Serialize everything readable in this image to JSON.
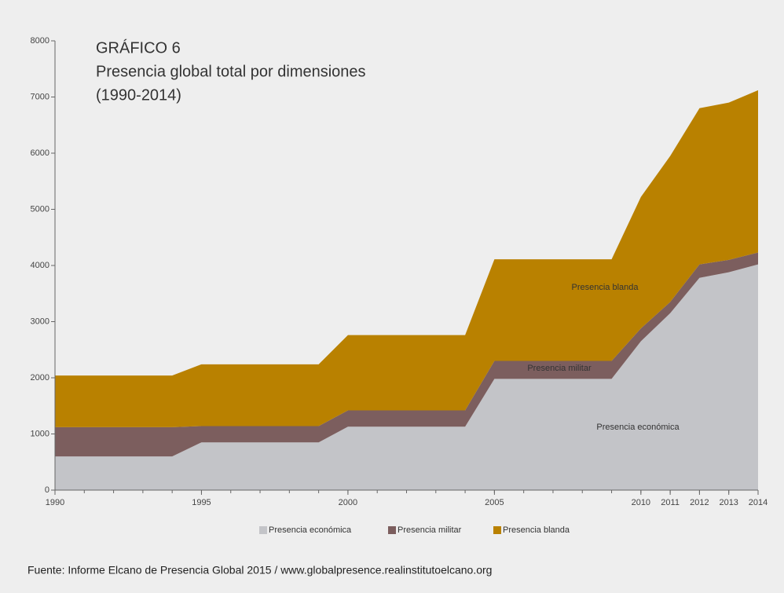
{
  "chart_data": {
    "type": "stacked_area",
    "title": [
      "GRÁFICO 6",
      "Presencia global total por dimensiones",
      "(1990-2014)"
    ],
    "x": [
      1990,
      1991,
      1992,
      1993,
      1994,
      1995,
      1996,
      1997,
      1998,
      1999,
      2000,
      2001,
      2002,
      2003,
      2004,
      2005,
      2006,
      2007,
      2008,
      2009,
      2010,
      2011,
      2012,
      2013,
      2014
    ],
    "series": [
      {
        "name": "Presencia económica",
        "color": "#c3c4c8",
        "values": [
          600,
          600,
          600,
          600,
          600,
          850,
          850,
          850,
          850,
          850,
          1130,
          1130,
          1130,
          1130,
          1130,
          1980,
          1980,
          1980,
          1980,
          1980,
          2650,
          3150,
          3780,
          3880,
          4020
        ]
      },
      {
        "name": "Presencia militar",
        "color": "#7c5e5e",
        "values": [
          520,
          520,
          520,
          520,
          520,
          290,
          290,
          290,
          290,
          290,
          290,
          290,
          290,
          290,
          290,
          320,
          320,
          320,
          320,
          320,
          230,
          200,
          240,
          220,
          210
        ]
      },
      {
        "name": "Presencia blanda",
        "color": "#b98100",
        "values": [
          920,
          920,
          920,
          920,
          920,
          1100,
          1100,
          1100,
          1100,
          1100,
          1340,
          1340,
          1340,
          1340,
          1340,
          1810,
          1810,
          1810,
          1810,
          1810,
          2340,
          2600,
          2780,
          2800,
          2890
        ]
      }
    ],
    "xlim": [
      1990,
      2014
    ],
    "xticks": [
      1990,
      1995,
      2000,
      2005,
      2010,
      2011,
      2012,
      2013,
      2014
    ],
    "ylim": [
      0,
      8000
    ],
    "yticks": [
      0,
      1000,
      2000,
      3000,
      4000,
      5000,
      6000,
      7000,
      8000
    ],
    "annotations": [
      "Presencia blanda",
      "Presencia militar",
      "Presencia económica"
    ],
    "legend": "bottom",
    "source": "Fuente: Informe Elcano de Presencia Global 2015 / www.globalpresence.realinstitutoelcano.org"
  }
}
